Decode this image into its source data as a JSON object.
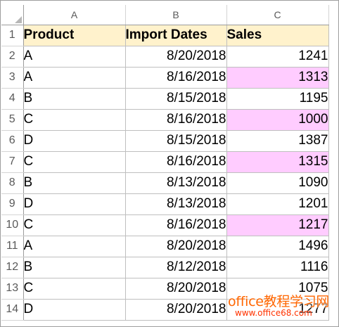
{
  "columns": [
    "A",
    "B",
    "C"
  ],
  "rows": [
    {
      "num": "1",
      "product": "Product",
      "date": "Import Dates",
      "sales": "Sales"
    },
    {
      "num": "2",
      "product": "A",
      "date": "8/20/2018",
      "sales": "1241"
    },
    {
      "num": "3",
      "product": "A",
      "date": "8/16/2018",
      "sales": "1313"
    },
    {
      "num": "4",
      "product": "B",
      "date": "8/15/2018",
      "sales": "1195"
    },
    {
      "num": "5",
      "product": "C",
      "date": "8/16/2018",
      "sales": "1000"
    },
    {
      "num": "6",
      "product": "D",
      "date": "8/15/2018",
      "sales": "1387"
    },
    {
      "num": "7",
      "product": "C",
      "date": "8/16/2018",
      "sales": "1315"
    },
    {
      "num": "8",
      "product": "B",
      "date": "8/13/2018",
      "sales": "1090"
    },
    {
      "num": "9",
      "product": "D",
      "date": "8/13/2018",
      "sales": "1201"
    },
    {
      "num": "10",
      "product": "C",
      "date": "8/16/2018",
      "sales": "1217"
    },
    {
      "num": "11",
      "product": "A",
      "date": "8/20/2018",
      "sales": "1496"
    },
    {
      "num": "12",
      "product": "B",
      "date": "8/12/2018",
      "sales": "1116"
    },
    {
      "num": "13",
      "product": "C",
      "date": "8/20/2018",
      "sales": "1075"
    },
    {
      "num": "14",
      "product": "D",
      "date": "8/20/2018",
      "sales": "1277"
    }
  ],
  "highlighted_rows": [
    "3",
    "5",
    "7",
    "10"
  ],
  "colors": {
    "header_fill": "#fff2cc",
    "highlight_fill": "#ffccff",
    "watermark": "#ff6600"
  },
  "watermark": {
    "title": "office教程学习网",
    "url": "www.office68.com"
  }
}
